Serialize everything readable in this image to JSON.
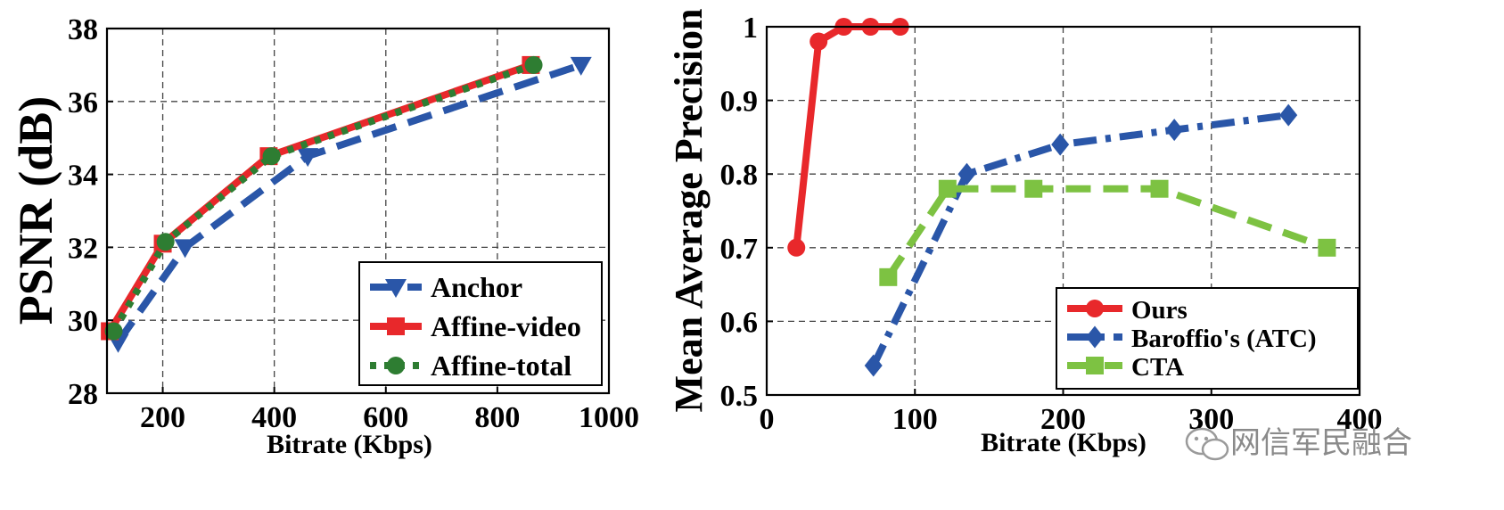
{
  "chart_data": [
    {
      "type": "line",
      "ylabel": "PSNR (dB)",
      "xlabel": "Bitrate (Kbps)",
      "xlim": [
        100,
        1000
      ],
      "ylim": [
        28,
        38
      ],
      "xticks": [
        200,
        400,
        600,
        800,
        1000
      ],
      "yticks": [
        28,
        30,
        32,
        34,
        36,
        38
      ],
      "grid": true,
      "legend_position": "bottom-right",
      "series": [
        {
          "name": "Anchor",
          "color": "#2a56a8",
          "marker": "triangle-down",
          "dash": "dashed",
          "x": [
            120,
            240,
            460,
            950
          ],
          "y": [
            29.4,
            32.0,
            34.5,
            37.0
          ]
        },
        {
          "name": "Affine-video",
          "color": "#e8282b",
          "marker": "square",
          "dash": "solid",
          "x": [
            105,
            200,
            390,
            860
          ],
          "y": [
            29.7,
            32.1,
            34.5,
            37.0
          ]
        },
        {
          "name": "Affine-total",
          "color": "#2e7d32",
          "marker": "circle",
          "dash": "dotted",
          "x": [
            112,
            205,
            395,
            865
          ],
          "y": [
            29.7,
            32.15,
            34.5,
            37.0
          ]
        }
      ]
    },
    {
      "type": "line",
      "ylabel": "Mean Average Precision",
      "xlabel": "Bitrate (Kbps)",
      "xlim": [
        0,
        400
      ],
      "ylim": [
        0.5,
        1.0
      ],
      "xticks": [
        0,
        100,
        200,
        300,
        400
      ],
      "xtick_labels": [
        "0",
        "100",
        "200",
        "300",
        "400"
      ],
      "yticks": [
        0.5,
        0.6,
        0.7,
        0.8,
        0.9,
        1.0
      ],
      "ytick_labels": [
        "0.5",
        "0.6",
        "0.7",
        "0.8",
        "0.9",
        "1"
      ],
      "grid": true,
      "legend_position": "bottom-right",
      "series": [
        {
          "name": "Ours",
          "color": "#e8282b",
          "marker": "circle",
          "dash": "solid",
          "x": [
            20,
            35,
            52,
            70,
            90
          ],
          "y": [
            0.7,
            0.98,
            1.0,
            1.0,
            1.0
          ]
        },
        {
          "name": "Baroffio's (ATC)",
          "color": "#2a56a8",
          "marker": "diamond",
          "dash": "dashdot",
          "x": [
            72,
            135,
            198,
            275,
            352
          ],
          "y": [
            0.54,
            0.8,
            0.84,
            0.86,
            0.88
          ]
        },
        {
          "name": "CTA",
          "color": "#7dc242",
          "marker": "square",
          "dash": "dashed",
          "x": [
            82,
            122,
            180,
            265,
            378
          ],
          "y": [
            0.66,
            0.78,
            0.78,
            0.78,
            0.7
          ]
        }
      ]
    }
  ],
  "watermark": "网信军民融合"
}
